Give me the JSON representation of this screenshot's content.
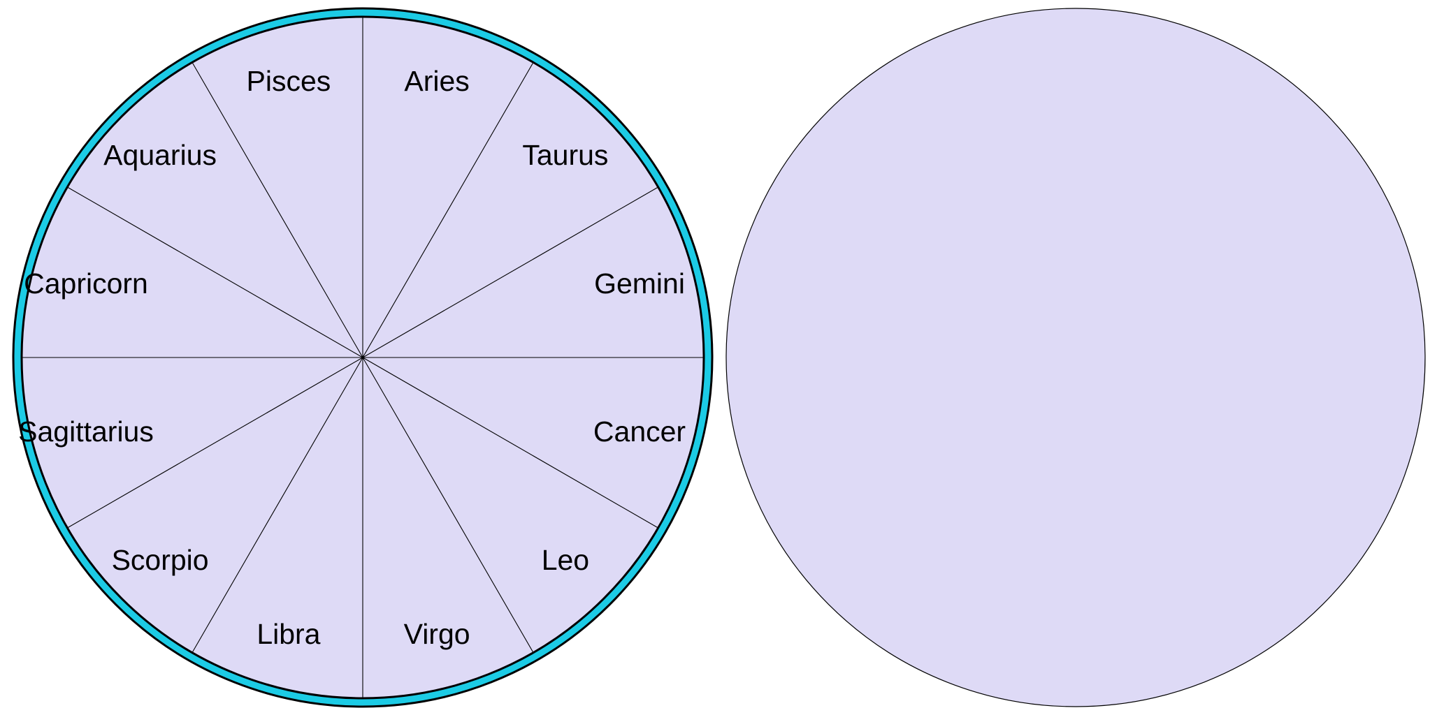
{
  "colors": {
    "disk_fill": "#dedaf6",
    "outer_ring": "#1ccbe5",
    "stroke": "#000000",
    "background": "#ffffff"
  },
  "zodiac_wheel": {
    "signs": [
      {
        "label": "Aries",
        "icon": "aries"
      },
      {
        "label": "Taurus",
        "icon": "taurus"
      },
      {
        "label": "Gemini",
        "icon": "gemini"
      },
      {
        "label": "Cancer",
        "icon": "cancer"
      },
      {
        "label": "Leo",
        "icon": "leo"
      },
      {
        "label": "Virgo",
        "icon": "virgo"
      },
      {
        "label": "Libra",
        "icon": "libra"
      },
      {
        "label": "Scorpio",
        "icon": "scorpio"
      },
      {
        "label": "Sagittarius",
        "icon": "sagittarius"
      },
      {
        "label": "Capricorn",
        "icon": "capricorn"
      },
      {
        "label": "Aquarius",
        "icon": "aquarius"
      },
      {
        "label": "Pisces",
        "icon": "pisces"
      }
    ]
  },
  "blank_disk": {}
}
